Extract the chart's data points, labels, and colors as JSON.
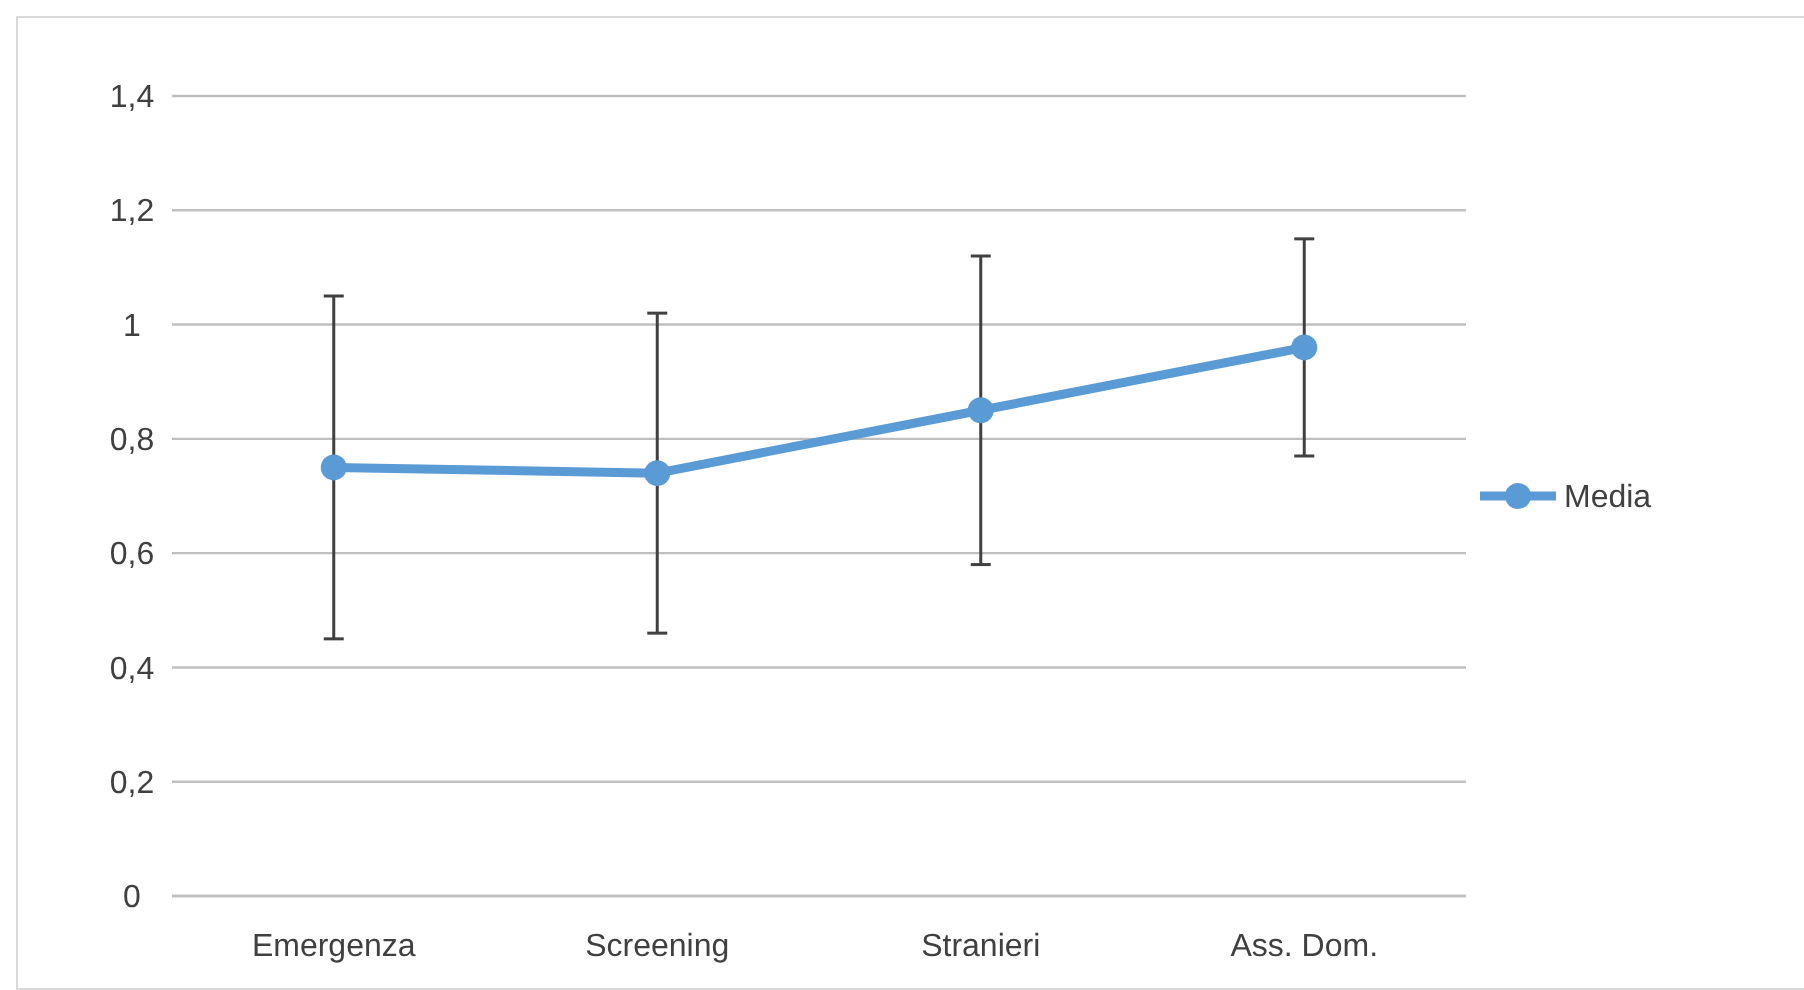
{
  "chart_data": {
    "type": "line",
    "categories": [
      "Emergenza",
      "Screening",
      "Stranieri",
      "Ass. Dom."
    ],
    "series": [
      {
        "name": "Media",
        "color": "#5b9bd5",
        "values": [
          0.75,
          0.74,
          0.85,
          0.96
        ],
        "errors": [
          [
            0.45,
            1.05
          ],
          [
            0.46,
            1.02
          ],
          [
            0.58,
            1.12
          ],
          [
            0.77,
            1.15
          ]
        ]
      }
    ],
    "ylim": [
      0,
      1.4
    ],
    "yticks": [
      0,
      {
        "value": 0.2,
        "label": "0,2"
      },
      {
        "value": 0.4,
        "label": "0,4"
      },
      {
        "value": 0.6,
        "label": "0,6"
      },
      {
        "value": 0.8,
        "label": "0,8"
      },
      1,
      {
        "value": 1.2,
        "label": "1,2"
      },
      {
        "value": 1.4,
        "label": "1,4"
      }
    ],
    "grid": "y",
    "legend": "right",
    "marker": "circle",
    "line_style": "solid"
  }
}
